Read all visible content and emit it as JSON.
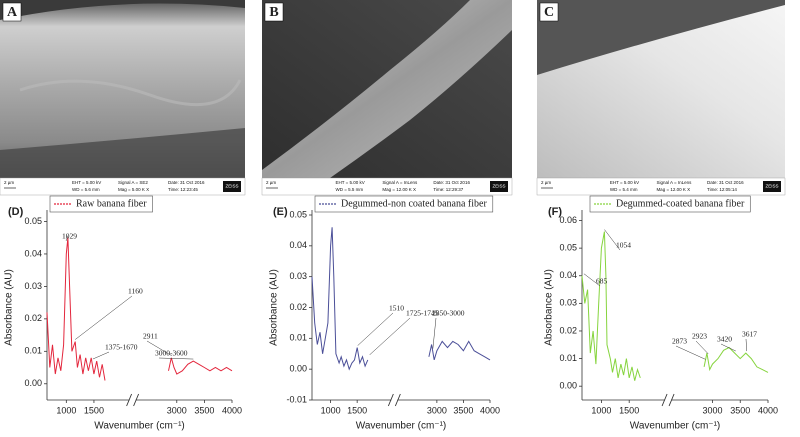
{
  "sem_panels": [
    {
      "letter": "A",
      "scale": "2 µm",
      "eht": "EHT = 5.00 kV",
      "wd": "WD = 5.6 mm",
      "signal": "Signal A = SE2",
      "mag": "Mag = 5.00 K X",
      "date": "Date: 31 Oct 2016",
      "time": "Time: 12:23:45",
      "brand": "ZEISS"
    },
    {
      "letter": "B",
      "scale": "2 µm",
      "eht": "EHT = 5.00 kV",
      "wd": "WD = 5.5 mm",
      "signal": "Signal A = InLens",
      "mag": "Mag = 12.00 K X",
      "date": "Date: 31 Oct 2016",
      "time": "Time: 12:29:37",
      "brand": "ZEISS"
    },
    {
      "letter": "C",
      "scale": "2 µm",
      "eht": "EHT = 5.00 kV",
      "wd": "WD = 5.4 mm",
      "signal": "Signal A = InLens",
      "mag": "Mag = 12.00 K X",
      "date": "Date: 31 Oct 2016",
      "time": "Time: 12:05:14",
      "brand": "ZEISS"
    }
  ],
  "chart_data": [
    {
      "type": "line",
      "title": "(D)",
      "x_label": "Wavenumber (cm⁻¹)",
      "y_label": "Absorbance (AU)",
      "x": [
        650,
        700,
        750,
        800,
        850,
        900,
        950,
        1000,
        1029,
        1060,
        1100,
        1160,
        1200,
        1250,
        1300,
        1350,
        1400,
        1450,
        1500,
        1550,
        1600,
        1650,
        1700,
        2200,
        2850,
        2900,
        2950,
        3000,
        3100,
        3200,
        3300,
        3400,
        3500,
        3600,
        3700,
        3800,
        3900,
        4000
      ],
      "series": [
        {
          "name": "Raw banana fiber",
          "color": "#e3263c",
          "values": [
            0.022,
            0.005,
            0.012,
            0.003,
            0.008,
            0.004,
            0.012,
            0.04,
            0.045,
            0.03,
            0.01,
            0.013,
            0.005,
            0.009,
            0.003,
            0.008,
            0.004,
            0.008,
            0.003,
            0.007,
            0.002,
            0.006,
            0.001,
            null,
            0.004,
            0.008,
            0.005,
            0.003,
            0.004,
            0.006,
            0.007,
            0.006,
            0.005,
            0.004,
            0.005,
            0.004,
            0.005,
            0.004
          ]
        }
      ],
      "annotations": [
        "1029",
        "1160",
        "1375-1670",
        "2911",
        "3000-3600"
      ],
      "xlim": [
        650,
        4000
      ],
      "xticks": [
        1000,
        1500,
        3000,
        3500,
        4000
      ],
      "axis_break": 2200,
      "ylim": [
        -0.005,
        0.052
      ],
      "yticks": [
        {
          "value": 0,
          "label": "0.00"
        },
        0.01,
        0.02,
        0.03,
        0.04,
        0.05
      ]
    },
    {
      "type": "line",
      "title": "(E)",
      "x_label": "Wavenumber (cm⁻¹)",
      "y_label": "Absorbance (AU)",
      "x": [
        650,
        700,
        750,
        800,
        850,
        900,
        950,
        1000,
        1029,
        1060,
        1100,
        1160,
        1200,
        1250,
        1300,
        1350,
        1400,
        1450,
        1500,
        1550,
        1600,
        1650,
        1700,
        2200,
        2850,
        2900,
        2950,
        3000,
        3100,
        3200,
        3300,
        3400,
        3500,
        3600,
        3700,
        3800,
        3900,
        4000
      ],
      "series": [
        {
          "name": "Degummed-non coated banana fiber",
          "color": "#4b4f98",
          "values": [
            0.03,
            0.015,
            0.008,
            0.012,
            0.005,
            0.01,
            0.015,
            0.04,
            0.046,
            0.03,
            0.005,
            0.002,
            0.004,
            0.001,
            0.003,
            0.0,
            0.002,
            0.003,
            0.007,
            0.002,
            0.004,
            0.001,
            0.003,
            null,
            0.004,
            0.008,
            0.003,
            0.006,
            0.009,
            0.007,
            0.009,
            0.008,
            0.006,
            0.009,
            0.006,
            0.005,
            0.004,
            0.003
          ]
        }
      ],
      "annotations": [
        "1510",
        "1725-1745",
        "2850-3000"
      ],
      "xlim": [
        650,
        4000
      ],
      "xticks": [
        1000,
        1500,
        3000,
        3500,
        4000
      ],
      "axis_break": 2200,
      "ylim": [
        -0.01,
        0.05
      ],
      "yticks": [
        -0.01,
        {
          "value": 0,
          "label": "0.00"
        },
        0.01,
        0.02,
        0.03,
        0.04,
        0.05
      ]
    },
    {
      "type": "line",
      "title": "(F)",
      "x_label": "Wavenumber (cm⁻¹)",
      "y_label": "Absorbance (AU)",
      "x": [
        650,
        700,
        750,
        800,
        850,
        900,
        950,
        1000,
        1054,
        1080,
        1100,
        1160,
        1200,
        1250,
        1300,
        1350,
        1400,
        1450,
        1500,
        1550,
        1600,
        1650,
        1700,
        2200,
        2850,
        2900,
        2950,
        3000,
        3100,
        3200,
        3300,
        3400,
        3500,
        3600,
        3700,
        3800,
        3900,
        4000
      ],
      "series": [
        {
          "name": "Degummed-coated banana fiber",
          "color": "#86d43e",
          "values": [
            0.04,
            0.03,
            0.035,
            0.012,
            0.02,
            0.008,
            0.03,
            0.05,
            0.056,
            0.04,
            0.015,
            0.01,
            0.005,
            0.01,
            0.003,
            0.008,
            0.004,
            0.01,
            0.003,
            0.007,
            0.002,
            0.006,
            0.003,
            null,
            0.007,
            0.012,
            0.006,
            0.008,
            0.01,
            0.013,
            0.014,
            0.012,
            0.01,
            0.012,
            0.01,
            0.007,
            0.006,
            0.005
          ]
        }
      ],
      "annotations": [
        "685",
        "1054",
        "2873",
        "2923",
        "3420",
        "3617"
      ],
      "xlim": [
        650,
        4000
      ],
      "xticks": [
        1000,
        1500,
        3000,
        3500,
        4000
      ],
      "axis_break": 2200,
      "ylim": [
        -0.005,
        0.062
      ],
      "yticks": [
        {
          "value": 0,
          "label": "0.00"
        },
        0.01,
        0.02,
        0.03,
        0.04,
        0.05,
        0.06
      ]
    }
  ]
}
